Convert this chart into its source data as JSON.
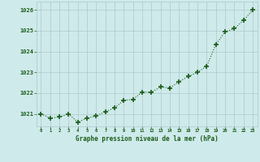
{
  "x": [
    0,
    1,
    2,
    3,
    4,
    5,
    6,
    7,
    8,
    9,
    10,
    11,
    12,
    13,
    14,
    15,
    16,
    17,
    18,
    19,
    20,
    21,
    22,
    23
  ],
  "y": [
    1021.0,
    1020.8,
    1020.85,
    1021.0,
    1020.6,
    1020.8,
    1020.9,
    1021.1,
    1021.3,
    1021.65,
    1021.7,
    1022.05,
    1022.05,
    1022.3,
    1022.25,
    1022.55,
    1022.8,
    1023.0,
    1023.3,
    1024.35,
    1024.95,
    1025.1,
    1025.5,
    1026.0
  ],
  "line_color": "#1a5c1a",
  "marker_color": "#1a5c1a",
  "bg_color": "#ceeaea",
  "grid_color": "#adc8cc",
  "xlabel": "Graphe pression niveau de la mer (hPa)",
  "xlabel_color": "#1a5c1a",
  "tick_color": "#1a5c1a",
  "ylim": [
    1020.4,
    1026.4
  ],
  "yticks": [
    1021,
    1022,
    1023,
    1024,
    1025,
    1026
  ],
  "xticks": [
    0,
    1,
    2,
    3,
    4,
    5,
    6,
    7,
    8,
    9,
    10,
    11,
    12,
    13,
    14,
    15,
    16,
    17,
    18,
    19,
    20,
    21,
    22,
    23
  ],
  "xlim": [
    -0.5,
    23.5
  ]
}
